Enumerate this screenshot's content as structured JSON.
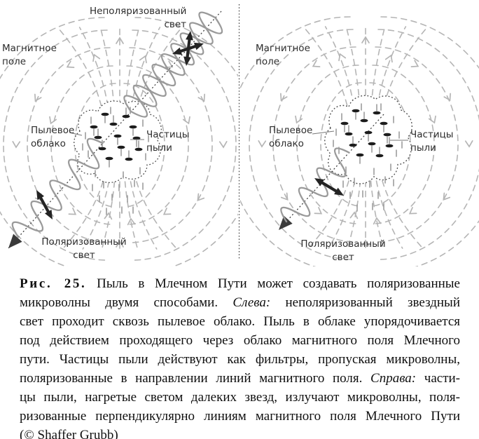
{
  "diagram": {
    "panels": {
      "left": {
        "labels": {
          "unpolarized_light": [
            "Неполяризованный",
            "свет"
          ],
          "magnetic_field": [
            "Магнитное",
            "поле"
          ],
          "dust_cloud": [
            "Пылевое",
            "облако"
          ],
          "dust_particles": [
            "Частицы",
            "пыли"
          ],
          "polarized_light": [
            "Поляризованный",
            "свет"
          ]
        }
      },
      "right": {
        "labels": {
          "magnetic_field": [
            "Магнитное",
            "поле"
          ],
          "dust_cloud": [
            "Пылевое",
            "облако"
          ],
          "dust_particles": [
            "Частицы",
            "пыли"
          ],
          "polarized_light": [
            "Поляризованный",
            "свет"
          ]
        }
      }
    },
    "colors": {
      "field_line": "#b5b5b5",
      "wave": "#9a9a9a",
      "ray": "#3a3a3a",
      "arrow_black": "#232323",
      "particle": "#1c1c1c",
      "cloud_outline": "#4a4a4a",
      "label_text": "#2d2d2d"
    }
  },
  "caption": {
    "lines": [
      [
        "Рис. 25.",
        " Пыль в Млечном Пути может создавать поляризованные"
      ],
      [
        "микроволны двумя способами. ",
        "Слева:",
        " неполяризованный звездный"
      ],
      [
        "свет проходит сквозь пылевое облако. Пыль в облаке упорядочивается"
      ],
      [
        "под действием проходящего через облако магнитного поля Млечного"
      ],
      [
        "пути. Частицы пыли действуют как фильтры, пропуская микроволны,"
      ],
      [
        "поляризованные в направлении линий магнитного поля. ",
        "Справа:",
        " части-"
      ],
      [
        "цы пыли, нагретые светом далеких звезд, излучают микроволны, поля-"
      ],
      [
        "ризованные перпендикулярно линиям магнитного поля Млечного Пути"
      ],
      [
        "(© Shaffer Grubb)"
      ]
    ]
  }
}
